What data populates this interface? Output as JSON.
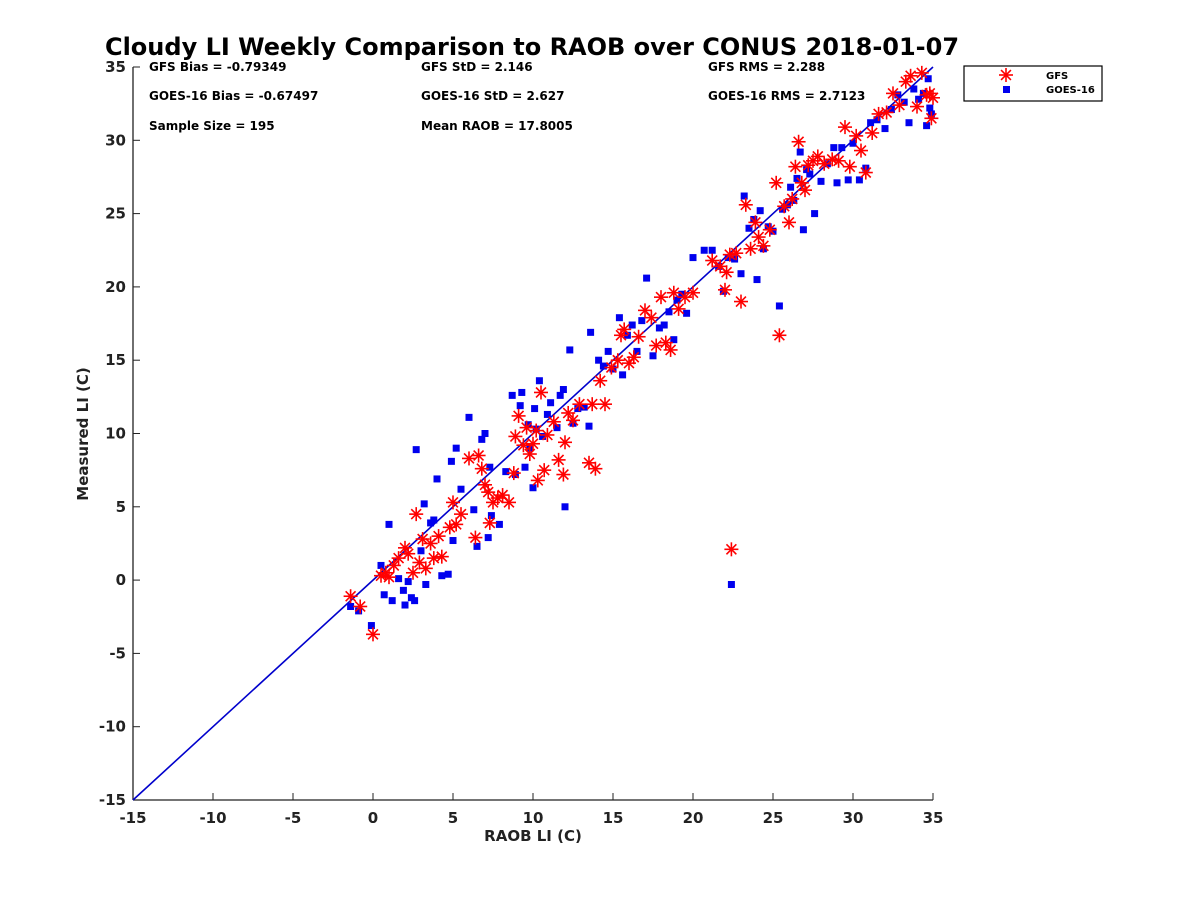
{
  "chart_data": {
    "type": "scatter",
    "title": "Cloudy LI Weekly Comparison to RAOB over CONUS 2018-01-07",
    "xlabel": "RAOB LI (C)",
    "ylabel": "Measured LI (C)",
    "xlim": [
      -15,
      35
    ],
    "ylim": [
      -15,
      35
    ],
    "xticks": [
      "-15",
      "-10",
      "-5",
      "0",
      "5",
      "10",
      "15",
      "20",
      "25",
      "30",
      "35"
    ],
    "yticks": [
      "-15",
      "-10",
      "-5",
      "0",
      "5",
      "10",
      "15",
      "20",
      "25",
      "30",
      "35"
    ],
    "grid": false,
    "legend_position": "top-right outside",
    "reference_line": {
      "x": [
        -15,
        35
      ],
      "y": [
        -15,
        35
      ],
      "color": "#0000cc"
    },
    "stats": {
      "gfs_bias": "GFS Bias = -0.79349",
      "gfs_std": "GFS StD = 2.146",
      "gfs_rms": "GFS RMS = 2.288",
      "goes_bias": "GOES-16 Bias = -0.67497",
      "goes_std": "GOES-16 StD = 2.627",
      "goes_rms": "GOES-16 RMS = 2.7123",
      "sample_size": "Sample Size = 195",
      "mean_raob": "Mean RAOB = 17.8005"
    },
    "series": [
      {
        "name": "GFS",
        "marker": "asterisk",
        "color": "#ff0000",
        "points": [
          [
            -1.4,
            -1.1
          ],
          [
            -0.8,
            -1.8
          ],
          [
            0.0,
            -3.7
          ],
          [
            0.5,
            0.3
          ],
          [
            0.8,
            0.5
          ],
          [
            1.0,
            0.2
          ],
          [
            1.3,
            1.0
          ],
          [
            1.6,
            1.5
          ],
          [
            2.0,
            2.2
          ],
          [
            2.2,
            1.8
          ],
          [
            2.5,
            0.5
          ],
          [
            2.7,
            4.5
          ],
          [
            2.9,
            1.2
          ],
          [
            3.1,
            2.8
          ],
          [
            3.3,
            0.8
          ],
          [
            3.6,
            2.5
          ],
          [
            3.8,
            1.5
          ],
          [
            4.1,
            3.0
          ],
          [
            4.3,
            1.6
          ],
          [
            4.8,
            3.6
          ],
          [
            5.0,
            5.3
          ],
          [
            5.2,
            3.8
          ],
          [
            5.5,
            4.5
          ],
          [
            6.0,
            8.3
          ],
          [
            6.4,
            2.9
          ],
          [
            6.6,
            8.5
          ],
          [
            6.8,
            7.6
          ],
          [
            7.0,
            6.5
          ],
          [
            7.2,
            6.0
          ],
          [
            7.3,
            3.9
          ],
          [
            7.5,
            5.3
          ],
          [
            7.8,
            5.6
          ],
          [
            8.1,
            5.8
          ],
          [
            8.5,
            5.3
          ],
          [
            8.8,
            7.3
          ],
          [
            8.9,
            9.8
          ],
          [
            9.1,
            11.2
          ],
          [
            9.4,
            9.2
          ],
          [
            9.6,
            10.4
          ],
          [
            9.8,
            8.6
          ],
          [
            10.0,
            9.3
          ],
          [
            10.2,
            10.2
          ],
          [
            10.3,
            6.8
          ],
          [
            10.5,
            12.8
          ],
          [
            10.7,
            7.5
          ],
          [
            10.9,
            9.9
          ],
          [
            11.3,
            10.8
          ],
          [
            11.6,
            8.2
          ],
          [
            11.9,
            7.2
          ],
          [
            12.0,
            9.4
          ],
          [
            12.2,
            11.4
          ],
          [
            12.5,
            10.9
          ],
          [
            12.9,
            12.0
          ],
          [
            13.5,
            8.0
          ],
          [
            13.7,
            12.0
          ],
          [
            13.9,
            7.6
          ],
          [
            14.2,
            13.6
          ],
          [
            14.5,
            12.0
          ],
          [
            14.9,
            14.5
          ],
          [
            15.3,
            15.0
          ],
          [
            15.5,
            16.7
          ],
          [
            15.7,
            17.1
          ],
          [
            16.0,
            14.8
          ],
          [
            16.3,
            15.2
          ],
          [
            16.6,
            16.6
          ],
          [
            17.0,
            18.4
          ],
          [
            17.4,
            17.9
          ],
          [
            17.7,
            16.0
          ],
          [
            18.0,
            19.3
          ],
          [
            18.3,
            16.2
          ],
          [
            18.6,
            15.7
          ],
          [
            18.8,
            19.6
          ],
          [
            19.1,
            18.5
          ],
          [
            19.5,
            19.3
          ],
          [
            20.0,
            19.6
          ],
          [
            21.2,
            21.8
          ],
          [
            21.7,
            21.4
          ],
          [
            22.0,
            19.8
          ],
          [
            22.1,
            21.0
          ],
          [
            22.3,
            22.2
          ],
          [
            22.4,
            2.1
          ],
          [
            22.7,
            22.3
          ],
          [
            23.0,
            19.0
          ],
          [
            23.3,
            25.6
          ],
          [
            23.6,
            22.6
          ],
          [
            23.9,
            24.4
          ],
          [
            24.1,
            23.4
          ],
          [
            24.4,
            22.8
          ],
          [
            24.8,
            23.9
          ],
          [
            25.2,
            27.1
          ],
          [
            25.4,
            16.7
          ],
          [
            25.7,
            25.5
          ],
          [
            26.0,
            24.4
          ],
          [
            26.2,
            26.0
          ],
          [
            26.4,
            28.2
          ],
          [
            26.6,
            29.9
          ],
          [
            26.8,
            27.1
          ],
          [
            27.0,
            26.6
          ],
          [
            27.2,
            28.3
          ],
          [
            27.5,
            28.6
          ],
          [
            27.8,
            28.9
          ],
          [
            28.2,
            28.4
          ],
          [
            28.7,
            28.7
          ],
          [
            29.1,
            28.6
          ],
          [
            29.5,
            30.9
          ],
          [
            29.8,
            28.2
          ],
          [
            30.2,
            30.3
          ],
          [
            30.5,
            29.3
          ],
          [
            30.8,
            27.8
          ],
          [
            31.2,
            30.5
          ],
          [
            31.6,
            31.8
          ],
          [
            32.1,
            31.9
          ],
          [
            32.5,
            33.2
          ],
          [
            32.9,
            32.4
          ],
          [
            33.3,
            34.0
          ],
          [
            33.6,
            34.4
          ],
          [
            34.0,
            32.3
          ],
          [
            34.3,
            34.6
          ],
          [
            34.6,
            33.1
          ],
          [
            34.8,
            33.2
          ],
          [
            34.9,
            31.5
          ],
          [
            35.0,
            32.9
          ]
        ]
      },
      {
        "name": "GOES-16",
        "marker": "square",
        "color": "#0000ee",
        "points": [
          [
            -1.4,
            -1.8
          ],
          [
            -0.9,
            -2.1
          ],
          [
            -0.1,
            -3.1
          ],
          [
            0.5,
            1.0
          ],
          [
            0.7,
            -1.0
          ],
          [
            1.0,
            3.8
          ],
          [
            1.2,
            -1.4
          ],
          [
            1.6,
            0.1
          ],
          [
            1.9,
            -0.7
          ],
          [
            2.0,
            -1.7
          ],
          [
            2.2,
            -0.1
          ],
          [
            2.4,
            -1.2
          ],
          [
            2.6,
            -1.4
          ],
          [
            2.7,
            8.9
          ],
          [
            3.0,
            2.0
          ],
          [
            3.2,
            5.2
          ],
          [
            3.3,
            -0.3
          ],
          [
            3.6,
            3.9
          ],
          [
            3.8,
            4.1
          ],
          [
            4.0,
            6.9
          ],
          [
            4.3,
            0.3
          ],
          [
            4.7,
            0.4
          ],
          [
            4.9,
            8.1
          ],
          [
            5.0,
            2.7
          ],
          [
            5.2,
            9.0
          ],
          [
            5.5,
            6.2
          ],
          [
            6.0,
            11.1
          ],
          [
            6.3,
            4.8
          ],
          [
            6.5,
            2.3
          ],
          [
            6.8,
            9.6
          ],
          [
            7.0,
            10.0
          ],
          [
            7.2,
            2.9
          ],
          [
            7.3,
            7.7
          ],
          [
            7.4,
            4.4
          ],
          [
            7.9,
            3.8
          ],
          [
            8.3,
            7.4
          ],
          [
            8.7,
            12.6
          ],
          [
            8.9,
            7.2
          ],
          [
            9.2,
            11.9
          ],
          [
            9.3,
            12.8
          ],
          [
            9.5,
            7.7
          ],
          [
            9.7,
            10.6
          ],
          [
            9.8,
            9.0
          ],
          [
            10.0,
            6.3
          ],
          [
            10.1,
            11.7
          ],
          [
            10.2,
            10.3
          ],
          [
            10.4,
            13.6
          ],
          [
            10.6,
            9.8
          ],
          [
            10.9,
            11.3
          ],
          [
            11.1,
            12.1
          ],
          [
            11.5,
            10.4
          ],
          [
            11.7,
            12.6
          ],
          [
            11.9,
            13.0
          ],
          [
            12.0,
            5.0
          ],
          [
            12.3,
            15.7
          ],
          [
            12.5,
            10.7
          ],
          [
            12.8,
            11.7
          ],
          [
            13.2,
            11.8
          ],
          [
            13.5,
            10.5
          ],
          [
            13.6,
            16.9
          ],
          [
            14.1,
            15.0
          ],
          [
            14.4,
            14.6
          ],
          [
            14.7,
            15.6
          ],
          [
            15.0,
            14.4
          ],
          [
            15.4,
            17.9
          ],
          [
            15.6,
            14.0
          ],
          [
            15.9,
            16.7
          ],
          [
            16.2,
            17.4
          ],
          [
            16.5,
            15.6
          ],
          [
            16.8,
            17.7
          ],
          [
            17.1,
            20.6
          ],
          [
            17.5,
            15.3
          ],
          [
            17.9,
            17.2
          ],
          [
            18.2,
            17.4
          ],
          [
            18.5,
            18.3
          ],
          [
            18.8,
            16.4
          ],
          [
            19.0,
            19.1
          ],
          [
            19.3,
            19.5
          ],
          [
            19.6,
            18.2
          ],
          [
            20.0,
            22.0
          ],
          [
            20.7,
            22.5
          ],
          [
            21.2,
            22.5
          ],
          [
            21.6,
            21.4
          ],
          [
            21.9,
            19.7
          ],
          [
            22.2,
            22.0
          ],
          [
            22.4,
            -0.3
          ],
          [
            22.6,
            21.9
          ],
          [
            23.0,
            20.9
          ],
          [
            23.2,
            26.2
          ],
          [
            23.5,
            24.0
          ],
          [
            23.8,
            24.6
          ],
          [
            24.0,
            20.5
          ],
          [
            24.2,
            25.2
          ],
          [
            24.4,
            22.6
          ],
          [
            24.7,
            24.1
          ],
          [
            25.0,
            23.8
          ],
          [
            25.4,
            18.7
          ],
          [
            25.6,
            25.3
          ],
          [
            25.9,
            25.6
          ],
          [
            26.1,
            26.8
          ],
          [
            26.3,
            25.9
          ],
          [
            26.5,
            27.4
          ],
          [
            26.7,
            29.2
          ],
          [
            26.9,
            23.9
          ],
          [
            27.1,
            28.0
          ],
          [
            27.3,
            27.7
          ],
          [
            27.6,
            25.0
          ],
          [
            28.0,
            27.2
          ],
          [
            28.4,
            28.4
          ],
          [
            28.8,
            29.5
          ],
          [
            29.0,
            27.1
          ],
          [
            29.3,
            29.5
          ],
          [
            29.7,
            27.3
          ],
          [
            30.0,
            29.8
          ],
          [
            30.4,
            27.3
          ],
          [
            30.8,
            28.1
          ],
          [
            31.1,
            31.2
          ],
          [
            31.5,
            31.4
          ],
          [
            32.0,
            30.8
          ],
          [
            32.4,
            32.1
          ],
          [
            32.8,
            33.1
          ],
          [
            33.2,
            32.6
          ],
          [
            33.5,
            31.2
          ],
          [
            33.8,
            33.5
          ],
          [
            34.1,
            32.8
          ],
          [
            34.4,
            33.2
          ],
          [
            34.6,
            31.0
          ],
          [
            34.7,
            34.2
          ],
          [
            34.8,
            32.2
          ],
          [
            34.9,
            31.8
          ]
        ]
      }
    ]
  }
}
